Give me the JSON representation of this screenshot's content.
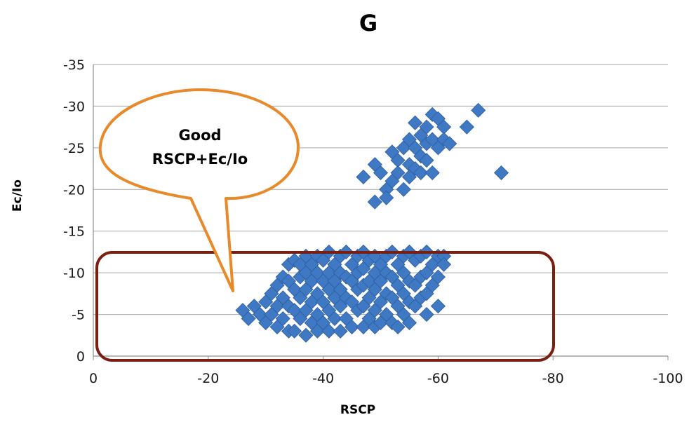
{
  "chart_data": {
    "type": "scatter",
    "title": "G",
    "xlabel": "RSCP",
    "ylabel": "Ec/Io",
    "xlim": [
      0,
      -100
    ],
    "ylim": [
      0,
      -35
    ],
    "x_ticks": [
      0,
      -20,
      -40,
      -60,
      -80,
      -100
    ],
    "y_ticks": [
      0,
      -5,
      -10,
      -15,
      -20,
      -25,
      -30,
      -35
    ],
    "grid": "horizontal",
    "marker": "diamond",
    "colors": {
      "marker": "#3F79C4",
      "marker_edge": "#2E5E9E",
      "callout": "#E8892A",
      "box": "#7A1E12",
      "grid": "#A6A6A6"
    },
    "annotation": {
      "lines": [
        "Good",
        "RSCP+Ec/Io"
      ]
    },
    "series": [
      {
        "points": [
          [
            -26,
            -5.5
          ],
          [
            -27,
            -4.5
          ],
          [
            -28,
            -6
          ],
          [
            -29,
            -5
          ],
          [
            -30,
            -6.5
          ],
          [
            -30,
            -4
          ],
          [
            -31,
            -7.5
          ],
          [
            -31,
            -5
          ],
          [
            -32,
            -8.5
          ],
          [
            -32,
            -6
          ],
          [
            -32,
            -3.5
          ],
          [
            -33,
            -9.5
          ],
          [
            -33,
            -7
          ],
          [
            -33,
            -4.5
          ],
          [
            -34,
            -11
          ],
          [
            -34,
            -9
          ],
          [
            -34,
            -6
          ],
          [
            -34,
            -3
          ],
          [
            -35,
            -11.5
          ],
          [
            -35,
            -8
          ],
          [
            -35,
            -5.5
          ],
          [
            -35,
            -3
          ],
          [
            -36,
            -11
          ],
          [
            -36,
            -9.5
          ],
          [
            -36,
            -7
          ],
          [
            -36,
            -4.5
          ],
          [
            -37,
            -12
          ],
          [
            -37,
            -10
          ],
          [
            -37,
            -8
          ],
          [
            -37,
            -5.5
          ],
          [
            -37,
            -2.5
          ],
          [
            -38,
            -11
          ],
          [
            -38,
            -9
          ],
          [
            -38,
            -6.5
          ],
          [
            -38,
            -4
          ],
          [
            -39,
            -12
          ],
          [
            -39,
            -10
          ],
          [
            -39,
            -7.5
          ],
          [
            -39,
            -5
          ],
          [
            -39,
            -3
          ],
          [
            -40,
            -11.5
          ],
          [
            -40,
            -9
          ],
          [
            -40,
            -6.5
          ],
          [
            -40,
            -4
          ],
          [
            -41,
            -12.5
          ],
          [
            -41,
            -10
          ],
          [
            -41,
            -8
          ],
          [
            -41,
            -5.5
          ],
          [
            -41,
            -3
          ],
          [
            -42,
            -11
          ],
          [
            -42,
            -9
          ],
          [
            -42,
            -7
          ],
          [
            -42,
            -4.5
          ],
          [
            -43,
            -12
          ],
          [
            -43,
            -10
          ],
          [
            -43,
            -8
          ],
          [
            -43,
            -6
          ],
          [
            -43,
            -3
          ],
          [
            -44,
            -12.5
          ],
          [
            -44,
            -9.5
          ],
          [
            -44,
            -7
          ],
          [
            -44,
            -4.5
          ],
          [
            -45,
            -11
          ],
          [
            -45,
            -9
          ],
          [
            -45,
            -6.5
          ],
          [
            -45,
            -3.5
          ],
          [
            -46,
            -12
          ],
          [
            -46,
            -10
          ],
          [
            -46,
            -8
          ],
          [
            -46,
            -5.5
          ],
          [
            -47,
            -12.5
          ],
          [
            -47,
            -10.5
          ],
          [
            -47,
            -8.5
          ],
          [
            -47,
            -6
          ],
          [
            -47,
            -3.5
          ],
          [
            -48,
            -11.5
          ],
          [
            -48,
            -9
          ],
          [
            -48,
            -7
          ],
          [
            -48,
            -4.5
          ],
          [
            -49,
            -12
          ],
          [
            -49,
            -10
          ],
          [
            -49,
            -8
          ],
          [
            -49,
            -5.5
          ],
          [
            -49,
            -3.5
          ],
          [
            -50,
            -11
          ],
          [
            -50,
            -9
          ],
          [
            -50,
            -6.5
          ],
          [
            -50,
            -4
          ],
          [
            -51,
            -12
          ],
          [
            -51,
            -10
          ],
          [
            -51,
            -7.5
          ],
          [
            -51,
            -5
          ],
          [
            -52,
            -12.5
          ],
          [
            -52,
            -9.5
          ],
          [
            -52,
            -7
          ],
          [
            -52,
            -4
          ],
          [
            -53,
            -11
          ],
          [
            -53,
            -8.5
          ],
          [
            -53,
            -6
          ],
          [
            -53,
            -3.5
          ],
          [
            -54,
            -12
          ],
          [
            -54,
            -10
          ],
          [
            -54,
            -7.5
          ],
          [
            -54,
            -5
          ],
          [
            -55,
            -12.5
          ],
          [
            -55,
            -9
          ],
          [
            -55,
            -6.5
          ],
          [
            -55,
            -4
          ],
          [
            -56,
            -11.5
          ],
          [
            -56,
            -8.5
          ],
          [
            -56,
            -6
          ],
          [
            -57,
            -12
          ],
          [
            -57,
            -9.5
          ],
          [
            -57,
            -7
          ],
          [
            -58,
            -12.5
          ],
          [
            -58,
            -10
          ],
          [
            -58,
            -7.5
          ],
          [
            -58,
            -5
          ],
          [
            -59,
            -11
          ],
          [
            -59,
            -8.5
          ],
          [
            -60,
            -12
          ],
          [
            -60,
            -9.5
          ],
          [
            -60,
            -6
          ],
          [
            -61,
            -12
          ],
          [
            -61,
            -11
          ],
          [
            -47,
            -21.5
          ],
          [
            -49,
            -23
          ],
          [
            -49,
            -18.5
          ],
          [
            -50,
            -22
          ],
          [
            -51,
            -20
          ],
          [
            -51,
            -19
          ],
          [
            -52,
            -24.5
          ],
          [
            -52,
            -21
          ],
          [
            -53,
            -23.5
          ],
          [
            -53,
            -22
          ],
          [
            -54,
            -25
          ],
          [
            -54,
            -20
          ],
          [
            -55,
            -26
          ],
          [
            -55,
            -23
          ],
          [
            -55,
            -21.5
          ],
          [
            -56,
            -28
          ],
          [
            -56,
            -25
          ],
          [
            -56,
            -22.5
          ],
          [
            -57,
            -26.5
          ],
          [
            -57,
            -24
          ],
          [
            -57,
            -22
          ],
          [
            -58,
            -27.5
          ],
          [
            -58,
            -25.5
          ],
          [
            -58,
            -23.5
          ],
          [
            -59,
            -29
          ],
          [
            -59,
            -26
          ],
          [
            -59,
            -22
          ],
          [
            -60,
            -28.5
          ],
          [
            -60,
            -25
          ],
          [
            -61,
            -27.5
          ],
          [
            -61,
            -26
          ],
          [
            -62,
            -25.5
          ],
          [
            -65,
            -27.5
          ],
          [
            -67,
            -29.5
          ],
          [
            -71,
            -22
          ]
        ]
      }
    ]
  }
}
